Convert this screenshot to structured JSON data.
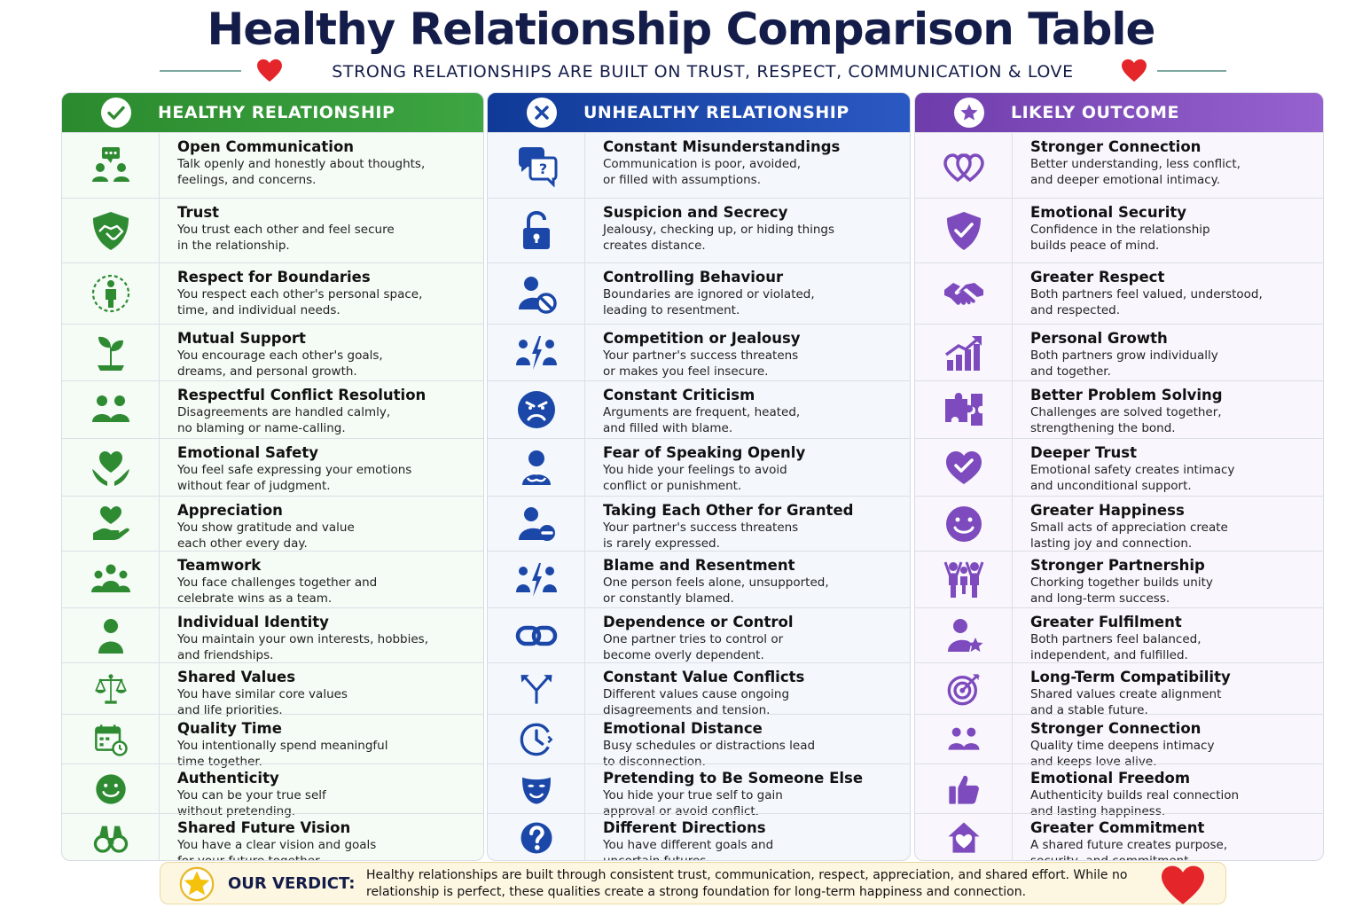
{
  "title": "Healthy Relationship Comparison Table",
  "subtitle": "STRONG RELATIONSHIPS ARE BUILT ON TRUST, RESPECT, COMMUNICATION & LOVE",
  "colors": {
    "healthy": "#2e8b32",
    "unhealthy": "#1a47a8",
    "outcome": "#7d4bbd",
    "heart": "#e4262b"
  },
  "columns": {
    "healthy": {
      "header": "HEALTHY RELATIONSHIP",
      "header_icon": "check-icon",
      "rows": [
        {
          "icon": "communication-icon",
          "title": "Open Communication",
          "desc": "Talk openly and honestly about thoughts,\nfeelings, and concerns."
        },
        {
          "icon": "shield-handshake-icon",
          "title": "Trust",
          "desc": "You trust each other and feel secure\nin the relationship."
        },
        {
          "icon": "person-boundary-icon",
          "title": "Respect for Boundaries",
          "desc": "You respect each other's personal space,\ntime, and individual needs."
        },
        {
          "icon": "sprout-icon",
          "title": "Mutual Support",
          "desc": "You encourage each other's goals,\ndreams, and personal growth."
        },
        {
          "icon": "two-people-icon",
          "title": "Respectful Conflict Resolution",
          "desc": "Disagreements are handled calmly,\nno blaming or name-calling."
        },
        {
          "icon": "heart-hands-icon",
          "title": "Emotional Safety",
          "desc": "You feel safe expressing your emotions\nwithout fear of judgment."
        },
        {
          "icon": "heart-hand-icon",
          "title": "Appreciation",
          "desc": "You show gratitude and value\neach other every day."
        },
        {
          "icon": "group-icon",
          "title": "Teamwork",
          "desc": "You face challenges together and\ncelebrate wins as a team."
        },
        {
          "icon": "person-icon",
          "title": "Individual Identity",
          "desc": "You maintain your own interests, hobbies,\nand friendships."
        },
        {
          "icon": "scales-icon",
          "title": "Shared Values",
          "desc": "You have similar core values\nand life priorities."
        },
        {
          "icon": "calendar-clock-icon",
          "title": "Quality Time",
          "desc": "You intentionally spend meaningful\ntime together."
        },
        {
          "icon": "smile-icon",
          "title": "Authenticity",
          "desc": "You can be your true self\nwithout pretending."
        },
        {
          "icon": "binoculars-icon",
          "title": "Shared Future Vision",
          "desc": "You have a clear vision and goals\nfor your future together."
        }
      ]
    },
    "unhealthy": {
      "header": "UNHEALTHY RELATIONSHIP",
      "header_icon": "x-icon",
      "rows": [
        {
          "icon": "speech-question-icon",
          "title": "Constant Misunderstandings",
          "desc": "Communication is poor, avoided,\nor filled with assumptions."
        },
        {
          "icon": "padlock-icon",
          "title": "Suspicion and Secrecy",
          "desc": "Jealousy, checking up, or hiding things\ncreates distance."
        },
        {
          "icon": "person-blocked-icon",
          "title": "Controlling Behaviour",
          "desc": "Boundaries are ignored or violated,\nleading to resentment."
        },
        {
          "icon": "people-lightning-icon",
          "title": "Competition or Jealousy",
          "desc": "Your partner's success threatens\nor makes you feel insecure."
        },
        {
          "icon": "angry-face-icon",
          "title": "Constant Criticism",
          "desc": "Arguments are frequent, heated,\nand filled with blame."
        },
        {
          "icon": "worried-person-icon",
          "title": "Fear of Speaking Openly",
          "desc": "You hide your feelings to avoid\nconflict or punishment."
        },
        {
          "icon": "person-minus-icon",
          "title": "Taking Each Other for Granted",
          "desc": "Your partner's success threatens\nis rarely expressed."
        },
        {
          "icon": "people-lightning-icon",
          "title": "Blame and Resentment",
          "desc": "One person feels alone, unsupported,\nor constantly blamed."
        },
        {
          "icon": "chain-link-icon",
          "title": "Dependence or Control",
          "desc": "One partner tries to control or\nbecome overly dependent."
        },
        {
          "icon": "diverging-arrows-icon",
          "title": "Constant Value Conflicts",
          "desc": "Different values cause ongoing\ndisagreements and tension."
        },
        {
          "icon": "clock-icon",
          "title": "Emotional Distance",
          "desc": "Busy schedules or distractions lead\nto disconnection."
        },
        {
          "icon": "mask-icon",
          "title": "Pretending to Be Someone Else",
          "desc": "You hide your true self to gain\napproval or avoid conflict."
        },
        {
          "icon": "question-circle-icon",
          "title": "Different Directions",
          "desc": "You have different goals and\nuncertain futures."
        }
      ]
    },
    "outcome": {
      "header": "LIKELY OUTCOME",
      "header_icon": "star-icon",
      "rows": [
        {
          "icon": "linked-hearts-icon",
          "title": "Stronger Connection",
          "desc": "Better understanding, less conflict,\nand deeper emotional intimacy."
        },
        {
          "icon": "shield-check-icon",
          "title": "Emotional Security",
          "desc": "Confidence in the relationship\nbuilds peace of mind."
        },
        {
          "icon": "handshake-icon",
          "title": "Greater Respect",
          "desc": "Both partners feel valued, understood,\nand respected."
        },
        {
          "icon": "growth-chart-icon",
          "title": "Personal Growth",
          "desc": "Both partners grow individually\nand together."
        },
        {
          "icon": "puzzle-icon",
          "title": "Better Problem Solving",
          "desc": "Challenges are solved together,\nstrengthening the bond."
        },
        {
          "icon": "heart-check-icon",
          "title": "Deeper Trust",
          "desc": "Emotional safety creates intimacy\nand unconditional support."
        },
        {
          "icon": "smile-icon",
          "title": "Greater Happiness",
          "desc": "Small acts of appreciation create\nlasting joy and connection."
        },
        {
          "icon": "team-celebrate-icon",
          "title": "Stronger Partnership",
          "desc": "Chorking together builds unity\nand long-term success."
        },
        {
          "icon": "person-star-icon",
          "title": "Greater Fulfilment",
          "desc": "Both partners feel balanced,\nindependent, and fulfilled."
        },
        {
          "icon": "target-icon",
          "title": "Long-Term Compatibility",
          "desc": "Shared values create alignment\nand a stable future."
        },
        {
          "icon": "two-people-icon",
          "title": "Stronger Connection",
          "desc": "Quality time deepens intimacy\nand keeps love alive."
        },
        {
          "icon": "thumbs-up-icon",
          "title": "Emotional Freedom",
          "desc": "Authenticity builds real connection\nand lasting happiness."
        },
        {
          "icon": "home-heart-icon",
          "title": "Greater Commitment",
          "desc": "A shared future creates purpose,\nsecurity, and commitment."
        }
      ]
    }
  },
  "verdict": {
    "label": "OUR VERDICT:",
    "text": "Healthy relationships are built through consistent trust, communication, respect, appreciation, and shared effort. While no relationship is perfect, these qualities create a strong foundation for long-term happiness and connection."
  }
}
